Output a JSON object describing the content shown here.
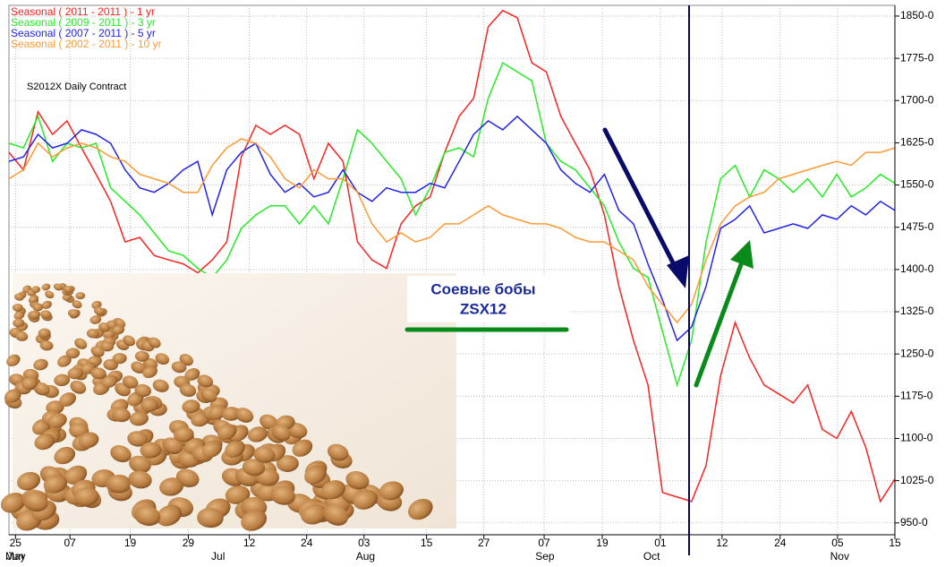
{
  "chart_data": {
    "type": "line",
    "subtitle": "S2012X Daily Contract",
    "annotation": [
      "Соевые бобы",
      "ZSX12"
    ],
    "x": [
      0,
      2,
      4,
      6,
      8,
      10,
      12,
      14,
      16,
      18,
      20,
      22,
      24,
      26,
      28,
      30,
      32,
      34,
      36,
      38,
      40,
      42,
      44,
      46,
      48,
      50,
      52,
      54,
      56,
      58,
      60,
      62,
      64,
      66,
      68,
      70,
      72,
      74,
      76,
      78,
      80,
      82,
      84,
      86,
      88,
      90,
      92,
      94,
      96,
      98,
      100,
      102,
      104,
      106,
      108,
      110,
      112,
      114,
      116,
      118,
      120,
      122
    ],
    "series": [
      {
        "name": "Seasonal ( 2011 - 2011 ) - 1 yr",
        "color": "#ff2020",
        "values": [
          1608,
          1577,
          1680,
          1640,
          1664,
          1616,
          1569,
          1521,
          1449,
          1457,
          1425,
          1417,
          1410,
          1394,
          1417,
          1449,
          1600,
          1656,
          1640,
          1656,
          1640,
          1561,
          1624,
          1592,
          1449,
          1417,
          1402,
          1481,
          1513,
          1529,
          1608,
          1672,
          1704,
          1831,
          1860,
          1847,
          1767,
          1751,
          1672,
          1624,
          1577,
          1497,
          1370,
          1274,
          1195,
          1004,
          996,
          988,
          1052,
          1211,
          1306,
          1243,
          1195,
          1179,
          1163,
          1195,
          1116,
          1100,
          1148,
          1084,
          988,
          1028
        ]
      },
      {
        "name": "Seasonal ( 2009 - 2011 ) - 3 yr",
        "color": "#22ee22",
        "values": [
          1624,
          1616,
          1672,
          1592,
          1624,
          1616,
          1624,
          1545,
          1521,
          1497,
          1465,
          1433,
          1425,
          1402,
          1386,
          1417,
          1473,
          1497,
          1513,
          1513,
          1481,
          1513,
          1481,
          1561,
          1648,
          1624,
          1592,
          1561,
          1497,
          1545,
          1608,
          1616,
          1600,
          1704,
          1767,
          1751,
          1735,
          1624,
          1592,
          1577,
          1545,
          1513,
          1449,
          1402,
          1386,
          1290,
          1195,
          1274,
          1449,
          1561,
          1585,
          1529,
          1577,
          1561,
          1537,
          1561,
          1529,
          1569,
          1529,
          1545,
          1569,
          1553
        ]
      },
      {
        "name": "Seasonal ( 2007 - 2011 ) - 5 yr",
        "color": "#2222ee",
        "values": [
          1592,
          1600,
          1640,
          1616,
          1624,
          1648,
          1640,
          1624,
          1577,
          1545,
          1537,
          1553,
          1577,
          1592,
          1497,
          1577,
          1608,
          1624,
          1569,
          1537,
          1553,
          1529,
          1537,
          1577,
          1537,
          1521,
          1545,
          1537,
          1537,
          1553,
          1545,
          1592,
          1640,
          1664,
          1648,
          1672,
          1648,
          1624,
          1577,
          1553,
          1537,
          1569,
          1505,
          1481,
          1410,
          1346,
          1274,
          1298,
          1370,
          1473,
          1489,
          1513,
          1465,
          1473,
          1481,
          1473,
          1497,
          1489,
          1513,
          1497,
          1521,
          1505
        ]
      },
      {
        "name": "Seasonal ( 2002 - 2011 ) - 10 yr",
        "color": "#ff9933",
        "values": [
          1561,
          1577,
          1624,
          1600,
          1616,
          1624,
          1616,
          1600,
          1592,
          1569,
          1561,
          1553,
          1537,
          1537,
          1585,
          1616,
          1632,
          1624,
          1600,
          1561,
          1545,
          1577,
          1561,
          1561,
          1537,
          1481,
          1449,
          1465,
          1449,
          1457,
          1481,
          1481,
          1497,
          1513,
          1497,
          1489,
          1481,
          1481,
          1473,
          1457,
          1449,
          1449,
          1433,
          1417,
          1370,
          1338,
          1306,
          1338,
          1417,
          1481,
          1513,
          1529,
          1537,
          1561,
          1569,
          1577,
          1585,
          1592,
          1585,
          1608,
          1608,
          1616
        ]
      }
    ],
    "xlim": [
      0,
      122
    ],
    "xticks": [
      {
        "value": 0.9,
        "label": "25"
      },
      {
        "value": 8.4,
        "label": "07"
      },
      {
        "value": 16.7,
        "label": "19"
      },
      {
        "value": 24.7,
        "label": "29"
      },
      {
        "value": 33.1,
        "label": "12"
      },
      {
        "value": 41,
        "label": "24"
      },
      {
        "value": 48.9,
        "label": "03"
      },
      {
        "value": 57.5,
        "label": "15"
      },
      {
        "value": 65.4,
        "label": "27"
      },
      {
        "value": 73.7,
        "label": "07"
      },
      {
        "value": 81.7,
        "label": "19"
      },
      {
        "value": 89.7,
        "label": "01"
      },
      {
        "value": 98.2,
        "label": "12"
      },
      {
        "value": 106.2,
        "label": "24"
      },
      {
        "value": 114.1,
        "label": "05"
      },
      {
        "value": 122,
        "label": "15"
      }
    ],
    "month_ticks": [
      {
        "value": 0.9,
        "label": "May"
      },
      {
        "value": 0.9,
        "label": "Jun"
      },
      {
        "value": 28.8,
        "label": "Jul"
      },
      {
        "value": 49.1,
        "label": "Aug"
      },
      {
        "value": 73.8,
        "label": "Sep"
      },
      {
        "value": 88.5,
        "label": "Oct"
      },
      {
        "value": 114.4,
        "label": "Nov"
      }
    ],
    "ylim": [
      929,
      1869
    ],
    "yticks": [
      {
        "value": 950,
        "label": "950-0"
      },
      {
        "value": 1025,
        "label": "1025-0"
      },
      {
        "value": 1100,
        "label": "1100-0"
      },
      {
        "value": 1175,
        "label": "1175-0"
      },
      {
        "value": 1250,
        "label": "1250-0"
      },
      {
        "value": 1325,
        "label": "1325-0"
      },
      {
        "value": 1400,
        "label": "1400-0"
      },
      {
        "value": 1475,
        "label": "1475-0"
      },
      {
        "value": 1550,
        "label": "1550-0"
      },
      {
        "value": 1625,
        "label": "1625-0"
      },
      {
        "value": 1700,
        "label": "1700-0"
      },
      {
        "value": 1775,
        "label": "1775-0"
      },
      {
        "value": 1850,
        "label": "1850-0"
      }
    ],
    "grid": true
  }
}
